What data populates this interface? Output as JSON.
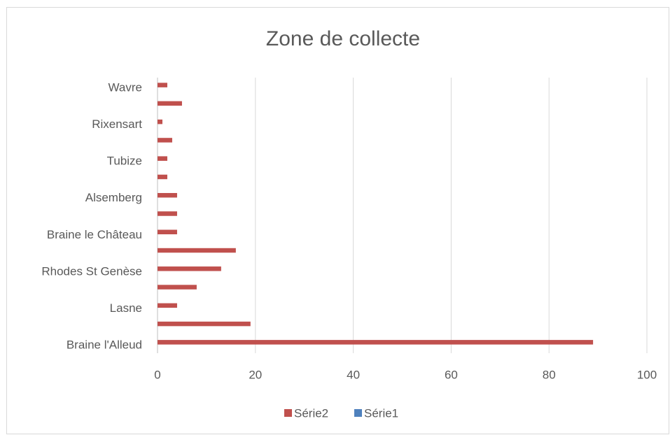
{
  "chart_data": {
    "type": "hbar",
    "title": "Zone de collecte",
    "categories": [
      "Braine l'Alleud",
      null,
      "Lasne",
      null,
      "Rhodes St Genèse",
      null,
      "Braine le Château",
      null,
      "Alsemberg",
      null,
      "Tubize",
      null,
      "Rixensart",
      null,
      "Wavre"
    ],
    "series": [
      {
        "name": "Série2",
        "color": "#c0504d",
        "values": [
          89,
          19,
          4,
          8,
          13,
          16,
          4,
          4,
          4,
          2,
          2,
          3,
          1,
          5,
          2
        ]
      },
      {
        "name": "Série1",
        "color": "#4f81bd",
        "values": [
          null,
          null,
          null,
          null,
          null,
          null,
          null,
          null,
          null,
          null,
          null,
          null,
          null,
          null,
          null
        ]
      }
    ],
    "xlim": [
      0,
      100
    ],
    "xticks": [
      0,
      20,
      40,
      60,
      80,
      100
    ],
    "grid": true,
    "legend": "bottom"
  }
}
